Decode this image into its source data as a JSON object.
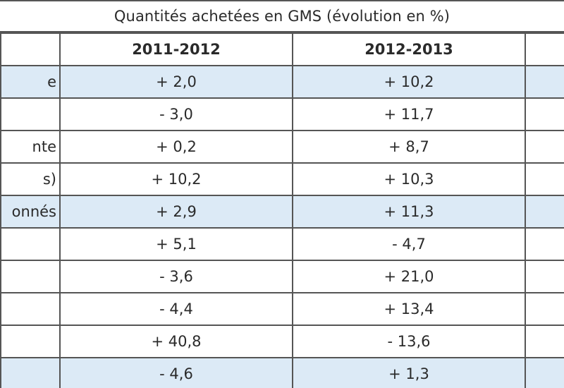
{
  "title": "Quantités achetées en GMS (évolution en %)",
  "columns": [
    "",
    "2011-2012",
    "2012-2013",
    ""
  ],
  "rows": [
    {
      "label": "e",
      "v1": "+ 2,0",
      "v2": "+ 10,2",
      "highlight": true
    },
    {
      "label": "",
      "v1": "- 3,0",
      "v2": "+ 11,7",
      "highlight": false
    },
    {
      "label": "nte",
      "v1": "+ 0,2",
      "v2": "+ 8,7",
      "highlight": false
    },
    {
      "label": "s)",
      "v1": "+ 10,2",
      "v2": "+ 10,3",
      "highlight": false
    },
    {
      "label": "onnés",
      "v1": "+ 2,9",
      "v2": "+ 11,3",
      "highlight": true
    },
    {
      "label": "",
      "v1": "+ 5,1",
      "v2": "- 4,7",
      "highlight": false
    },
    {
      "label": "",
      "v1": "- 3,6",
      "v2": "+ 21,0",
      "highlight": false
    },
    {
      "label": "",
      "v1": "- 4,4",
      "v2": "+ 13,4",
      "highlight": false
    },
    {
      "label": "",
      "v1": "+ 40,8",
      "v2": "- 13,6",
      "highlight": false
    },
    {
      "label": "",
      "v1": "- 4,6",
      "v2": "+ 1,3",
      "highlight": true
    }
  ],
  "colors": {
    "highlight": "#dceaf6",
    "border": "#555555"
  }
}
